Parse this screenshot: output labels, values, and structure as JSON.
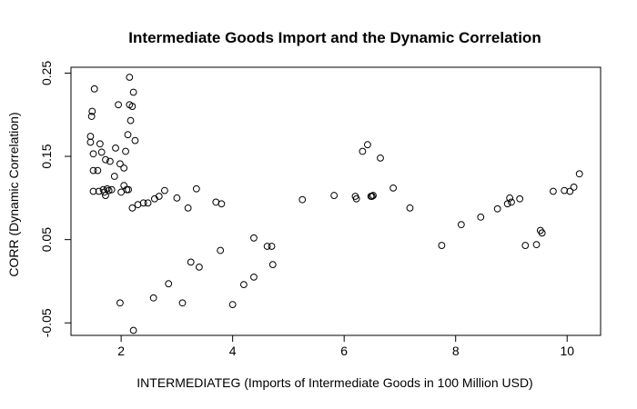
{
  "chart_data": {
    "type": "scatter",
    "title": "Intermediate Goods Import and the Dynamic Correlation",
    "xlabel": "INTERMEDIATEG (Imports of Intermediate Goods in 100 Million USD)",
    "ylabel": "CORR (Dynamic Correlation)",
    "xlim": [
      1.1,
      10.6
    ],
    "ylim": [
      -0.065,
      0.257
    ],
    "x_ticks": [
      2,
      4,
      6,
      8,
      10
    ],
    "y_ticks": [
      -0.05,
      0.05,
      0.15,
      0.25
    ],
    "x_tick_labels": [
      "2",
      "4",
      "6",
      "8",
      "10"
    ],
    "y_tick_labels": [
      "-0.05",
      "0.05",
      "0.15",
      "0.25"
    ],
    "grid": false,
    "legend": "none",
    "marker": "open-circle",
    "color": "#000000",
    "points": [
      {
        "x": 1.45,
        "y": 0.174
      },
      {
        "x": 1.45,
        "y": 0.167
      },
      {
        "x": 1.47,
        "y": 0.198
      },
      {
        "x": 1.48,
        "y": 0.204
      },
      {
        "x": 1.52,
        "y": 0.231
      },
      {
        "x": 1.5,
        "y": 0.153
      },
      {
        "x": 1.5,
        "y": 0.133
      },
      {
        "x": 1.5,
        "y": 0.108
      },
      {
        "x": 1.58,
        "y": 0.133
      },
      {
        "x": 1.6,
        "y": 0.108
      },
      {
        "x": 1.62,
        "y": 0.165
      },
      {
        "x": 1.65,
        "y": 0.155
      },
      {
        "x": 1.68,
        "y": 0.11
      },
      {
        "x": 1.7,
        "y": 0.107
      },
      {
        "x": 1.72,
        "y": 0.103
      },
      {
        "x": 1.72,
        "y": 0.146
      },
      {
        "x": 1.75,
        "y": 0.111
      },
      {
        "x": 1.78,
        "y": 0.109
      },
      {
        "x": 1.8,
        "y": 0.144
      },
      {
        "x": 1.83,
        "y": 0.11
      },
      {
        "x": 1.88,
        "y": 0.126
      },
      {
        "x": 1.9,
        "y": 0.16
      },
      {
        "x": 1.95,
        "y": 0.212
      },
      {
        "x": 1.98,
        "y": 0.141
      },
      {
        "x": 2.0,
        "y": 0.107
      },
      {
        "x": 2.05,
        "y": 0.136
      },
      {
        "x": 2.05,
        "y": 0.115
      },
      {
        "x": 2.08,
        "y": 0.156
      },
      {
        "x": 2.1,
        "y": 0.11
      },
      {
        "x": 2.12,
        "y": 0.176
      },
      {
        "x": 2.15,
        "y": 0.212
      },
      {
        "x": 2.15,
        "y": 0.245
      },
      {
        "x": 2.17,
        "y": 0.193
      },
      {
        "x": 2.2,
        "y": 0.21
      },
      {
        "x": 2.22,
        "y": 0.227
      },
      {
        "x": 2.25,
        "y": 0.169
      },
      {
        "x": 2.13,
        "y": 0.11
      },
      {
        "x": 2.2,
        "y": 0.088
      },
      {
        "x": 2.3,
        "y": 0.092
      },
      {
        "x": 2.4,
        "y": 0.094
      },
      {
        "x": 2.48,
        "y": 0.094
      },
      {
        "x": 2.6,
        "y": 0.099
      },
      {
        "x": 2.68,
        "y": 0.102
      },
      {
        "x": 2.78,
        "y": 0.109
      },
      {
        "x": 3.0,
        "y": 0.1
      },
      {
        "x": 3.2,
        "y": 0.088
      },
      {
        "x": 3.35,
        "y": 0.111
      },
      {
        "x": 3.7,
        "y": 0.095
      },
      {
        "x": 3.8,
        "y": 0.093
      },
      {
        "x": 1.98,
        "y": -0.026
      },
      {
        "x": 2.58,
        "y": -0.02
      },
      {
        "x": 2.22,
        "y": -0.059
      },
      {
        "x": 2.85,
        "y": -0.003
      },
      {
        "x": 3.1,
        "y": -0.026
      },
      {
        "x": 3.25,
        "y": 0.023
      },
      {
        "x": 3.4,
        "y": 0.017
      },
      {
        "x": 3.78,
        "y": 0.037
      },
      {
        "x": 4.0,
        "y": -0.028
      },
      {
        "x": 4.2,
        "y": -0.004
      },
      {
        "x": 4.38,
        "y": 0.005
      },
      {
        "x": 4.38,
        "y": 0.052
      },
      {
        "x": 4.62,
        "y": 0.042
      },
      {
        "x": 4.7,
        "y": 0.042
      },
      {
        "x": 4.72,
        "y": 0.02
      },
      {
        "x": 5.25,
        "y": 0.098
      },
      {
        "x": 5.82,
        "y": 0.103
      },
      {
        "x": 6.2,
        "y": 0.102
      },
      {
        "x": 6.22,
        "y": 0.099
      },
      {
        "x": 6.33,
        "y": 0.156
      },
      {
        "x": 6.42,
        "y": 0.164
      },
      {
        "x": 6.48,
        "y": 0.102
      },
      {
        "x": 6.5,
        "y": 0.102
      },
      {
        "x": 6.52,
        "y": 0.103
      },
      {
        "x": 6.65,
        "y": 0.148
      },
      {
        "x": 6.88,
        "y": 0.112
      },
      {
        "x": 7.18,
        "y": 0.088
      },
      {
        "x": 7.75,
        "y": 0.043
      },
      {
        "x": 8.1,
        "y": 0.068
      },
      {
        "x": 8.45,
        "y": 0.077
      },
      {
        "x": 8.75,
        "y": 0.087
      },
      {
        "x": 8.93,
        "y": 0.093
      },
      {
        "x": 8.97,
        "y": 0.1
      },
      {
        "x": 9.0,
        "y": 0.095
      },
      {
        "x": 9.15,
        "y": 0.099
      },
      {
        "x": 9.25,
        "y": 0.043
      },
      {
        "x": 9.45,
        "y": 0.044
      },
      {
        "x": 9.52,
        "y": 0.061
      },
      {
        "x": 9.55,
        "y": 0.058
      },
      {
        "x": 9.75,
        "y": 0.108
      },
      {
        "x": 9.95,
        "y": 0.109
      },
      {
        "x": 10.05,
        "y": 0.108
      },
      {
        "x": 10.12,
        "y": 0.113
      },
      {
        "x": 10.22,
        "y": 0.129
      }
    ]
  }
}
